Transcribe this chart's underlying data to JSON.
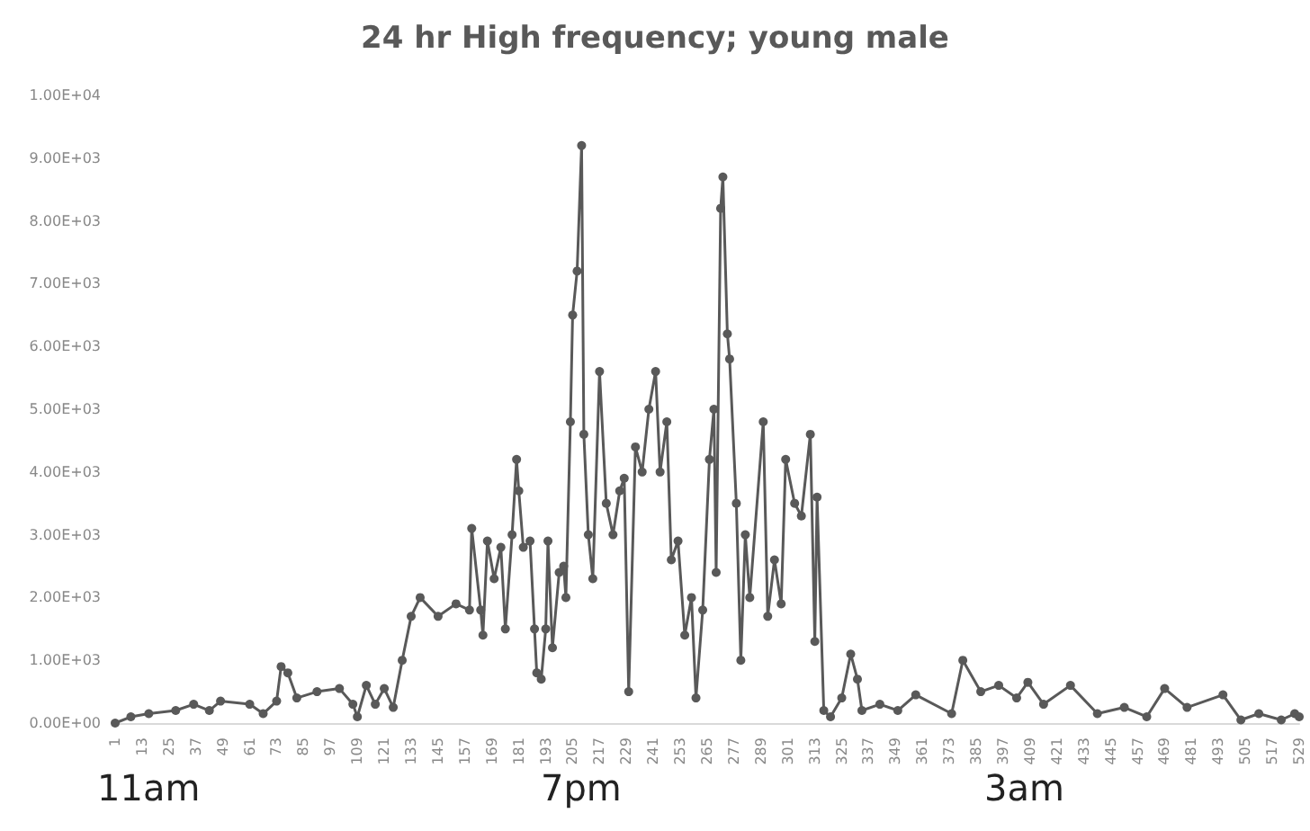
{
  "chart_data": {
    "type": "line",
    "title": "24 hr High frequency; young male",
    "x": [
      1,
      8,
      16,
      28,
      36,
      43,
      48,
      61,
      67,
      73,
      75,
      78,
      82,
      91,
      101,
      107,
      109,
      113,
      117,
      121,
      125,
      129,
      133,
      137,
      145,
      153,
      159,
      160,
      164,
      165,
      167,
      170,
      173,
      175,
      178,
      180,
      181,
      183,
      186,
      188,
      189,
      191,
      193,
      194,
      196,
      199,
      201,
      202,
      204,
      205,
      207,
      209,
      210,
      212,
      214,
      217,
      220,
      223,
      226,
      228,
      230,
      233,
      236,
      239,
      242,
      244,
      247,
      249,
      252,
      255,
      258,
      260,
      263,
      266,
      268,
      269,
      271,
      272,
      274,
      275,
      278,
      280,
      282,
      284,
      290,
      292,
      295,
      298,
      300,
      304,
      307,
      311,
      313,
      314,
      317,
      320,
      325,
      329,
      332,
      334,
      342,
      350,
      358,
      374,
      379,
      387,
      395,
      403,
      408,
      415,
      427,
      439,
      451,
      461,
      469,
      479,
      495,
      503,
      511,
      521,
      527,
      529
    ],
    "series": [
      {
        "color": "#595959",
        "values": [
          0,
          100,
          150,
          200,
          300,
          200,
          350,
          300,
          150,
          350,
          900,
          800,
          400,
          500,
          550,
          300,
          100,
          600,
          300,
          550,
          250,
          1000,
          1700,
          2000,
          1700,
          1900,
          1800,
          3100,
          1800,
          1400,
          2900,
          2300,
          2800,
          1500,
          3000,
          4200,
          3700,
          2800,
          2900,
          1500,
          800,
          700,
          1500,
          2900,
          1200,
          2400,
          2500,
          2000,
          4800,
          6500,
          7200,
          9200,
          4600,
          3000,
          2300,
          5600,
          3500,
          3000,
          3700,
          3900,
          500,
          4400,
          4000,
          5000,
          5600,
          4000,
          4800,
          2600,
          2900,
          1400,
          2000,
          400,
          1800,
          4200,
          5000,
          2400,
          8200,
          8700,
          6200,
          5800,
          3500,
          1000,
          3000,
          2000,
          4800,
          1700,
          2600,
          1900,
          4200,
          3500,
          3300,
          4600,
          1300,
          3600,
          200,
          100,
          400,
          1100,
          700,
          200,
          300,
          200,
          450,
          150,
          1000,
          500,
          600,
          400,
          650,
          300,
          600,
          150,
          250,
          100,
          550,
          250,
          450,
          50,
          150,
          50,
          150,
          100
        ]
      }
    ],
    "xlim": [
      1,
      529
    ],
    "xticks": [
      1,
      13,
      25,
      37,
      49,
      61,
      73,
      85,
      97,
      109,
      121,
      133,
      145,
      157,
      169,
      181,
      193,
      205,
      217,
      229,
      241,
      253,
      265,
      277,
      289,
      301,
      313,
      325,
      337,
      349,
      361,
      373,
      385,
      397,
      409,
      421,
      433,
      445,
      457,
      469,
      481,
      493,
      505,
      517,
      529
    ],
    "ylim": [
      0,
      10000
    ],
    "yticks": [
      {
        "value": 0,
        "label": "0.00E+00"
      },
      {
        "value": 1000,
        "label": "1.00E+03"
      },
      {
        "value": 2000,
        "label": "2.00E+03"
      },
      {
        "value": 3000,
        "label": "3.00E+03"
      },
      {
        "value": 4000,
        "label": "4.00E+03"
      },
      {
        "value": 5000,
        "label": "5.00E+03"
      },
      {
        "value": 6000,
        "label": "6.00E+03"
      },
      {
        "value": 7000,
        "label": "7.00E+03"
      },
      {
        "value": 8000,
        "label": "8.00E+03"
      },
      {
        "value": 9000,
        "label": "9.00E+03"
      },
      {
        "value": 10000,
        "label": "1.00E+04"
      }
    ],
    "annotations": [
      "11am",
      "7pm",
      "3am"
    ],
    "grid": false,
    "marker": "circle",
    "line_style": "solid"
  }
}
